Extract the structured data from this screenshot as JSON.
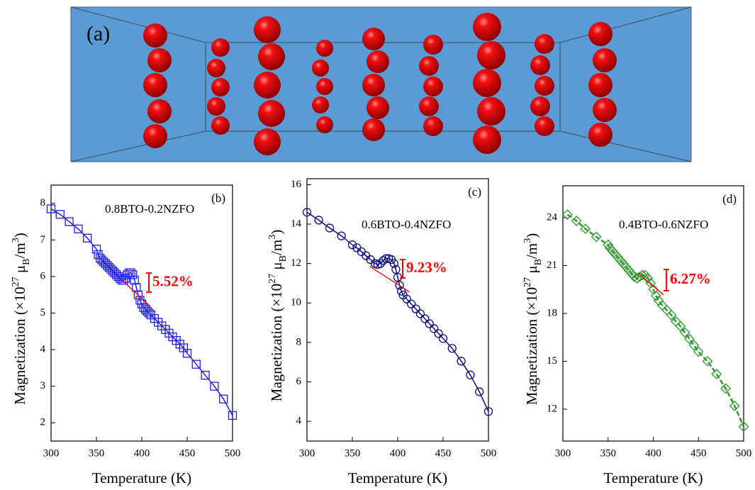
{
  "panel_a": {
    "label": "(a)"
  },
  "chart_data": [
    {
      "type": "line",
      "panel_label": "(b)",
      "sample_label": "0.8BTO-0.2NZFO",
      "annotation": "5.52%",
      "x_label": "Temperature (K)",
      "y_label": [
        "Magnetization (×10",
        "27",
        " μ",
        "B",
        "/m",
        "3",
        ")"
      ],
      "color": "#1f1ff0",
      "marker": "square",
      "dashed": false,
      "xlim": [
        300,
        500
      ],
      "xticks": [
        300,
        350,
        400,
        450,
        500
      ],
      "ylim": [
        1.5,
        8.5
      ],
      "yticks": [
        2,
        3,
        4,
        5,
        6,
        7,
        8
      ],
      "x": [
        300,
        310,
        320,
        330,
        340,
        350,
        352,
        354,
        356,
        358,
        360,
        362,
        364,
        366,
        368,
        370,
        372,
        374,
        376,
        378,
        380,
        382,
        384,
        386,
        388,
        390,
        392,
        394,
        396,
        398,
        400,
        402,
        404,
        406,
        408,
        410,
        414,
        418,
        422,
        426,
        430,
        434,
        438,
        442,
        446,
        450,
        460,
        470,
        480,
        490,
        500
      ],
      "values": [
        7.85,
        7.7,
        7.5,
        7.3,
        7.05,
        6.75,
        6.6,
        6.5,
        6.45,
        6.4,
        6.35,
        6.3,
        6.25,
        6.2,
        6.15,
        6.1,
        6.05,
        6.0,
        5.95,
        5.9,
        5.9,
        5.95,
        6.05,
        6.1,
        6.1,
        6.05,
        5.9,
        5.7,
        5.5,
        5.35,
        5.25,
        5.15,
        5.1,
        5.05,
        5.0,
        4.95,
        4.85,
        4.75,
        4.65,
        4.55,
        4.45,
        4.35,
        4.25,
        4.15,
        4.05,
        3.9,
        3.6,
        3.3,
        3.0,
        2.65,
        2.2
      ]
    },
    {
      "type": "line",
      "panel_label": "(c)",
      "sample_label": "0.6BTO-0.4NZFO",
      "annotation": "9.23%",
      "x_label": "Temperature (K)",
      "y_label": [
        "Magnetization (×10",
        "27",
        " μ",
        "B",
        "/m",
        "3",
        ")"
      ],
      "color": "#0c0c80",
      "marker": "circle",
      "dashed": false,
      "xlim": [
        300,
        500
      ],
      "xticks": [
        300,
        350,
        400,
        450,
        500
      ],
      "ylim": [
        3,
        16.3
      ],
      "yticks": [
        4,
        6,
        8,
        10,
        12,
        14,
        16
      ],
      "x": [
        300,
        313,
        325,
        338,
        350,
        355,
        360,
        365,
        370,
        375,
        378,
        381,
        384,
        387,
        390,
        393,
        396,
        398,
        400,
        402,
        404,
        406,
        410,
        415,
        420,
        425,
        430,
        435,
        440,
        445,
        450,
        460,
        470,
        480,
        490,
        500
      ],
      "values": [
        14.6,
        14.2,
        13.8,
        13.4,
        12.95,
        12.8,
        12.6,
        12.4,
        12.2,
        12.0,
        11.95,
        12.0,
        12.15,
        12.25,
        12.25,
        12.2,
        12.0,
        11.7,
        11.3,
        10.9,
        10.6,
        10.4,
        10.2,
        9.95,
        9.7,
        9.45,
        9.2,
        8.95,
        8.7,
        8.45,
        8.2,
        7.7,
        7.05,
        6.35,
        5.5,
        4.5
      ]
    },
    {
      "type": "line",
      "panel_label": "(d)",
      "sample_label": "0.4BTO-0.6NZFO",
      "annotation": "6.27%",
      "x_label": "Temperature (K)",
      "y_label": [
        "Magnetization (×10",
        "27",
        " μ",
        "B",
        "/m",
        "3",
        ")"
      ],
      "color": "#2e9a2e",
      "marker": "diamond",
      "dashed": true,
      "xlim": [
        300,
        500
      ],
      "xticks": [
        300,
        350,
        400,
        450,
        500
      ],
      "ylim": [
        10,
        26
      ],
      "yticks": [
        12,
        15,
        18,
        21,
        24
      ],
      "x": [
        305,
        315,
        325,
        337,
        350,
        352,
        355,
        358,
        361,
        364,
        367,
        370,
        373,
        376,
        379,
        382,
        385,
        388,
        391,
        394,
        397,
        400,
        403,
        406,
        410,
        415,
        420,
        425,
        430,
        435,
        440,
        445,
        450,
        460,
        470,
        480,
        490,
        500
      ],
      "values": [
        24.2,
        23.8,
        23.3,
        22.8,
        22.3,
        22.1,
        21.9,
        21.7,
        21.5,
        21.3,
        21.1,
        20.9,
        20.7,
        20.5,
        20.3,
        20.2,
        20.3,
        20.4,
        20.4,
        20.2,
        19.9,
        19.5,
        19.1,
        18.8,
        18.5,
        18.2,
        17.9,
        17.5,
        17.2,
        16.8,
        16.4,
        16.0,
        15.6,
        15.0,
        14.2,
        13.3,
        12.2,
        10.9
      ]
    }
  ]
}
